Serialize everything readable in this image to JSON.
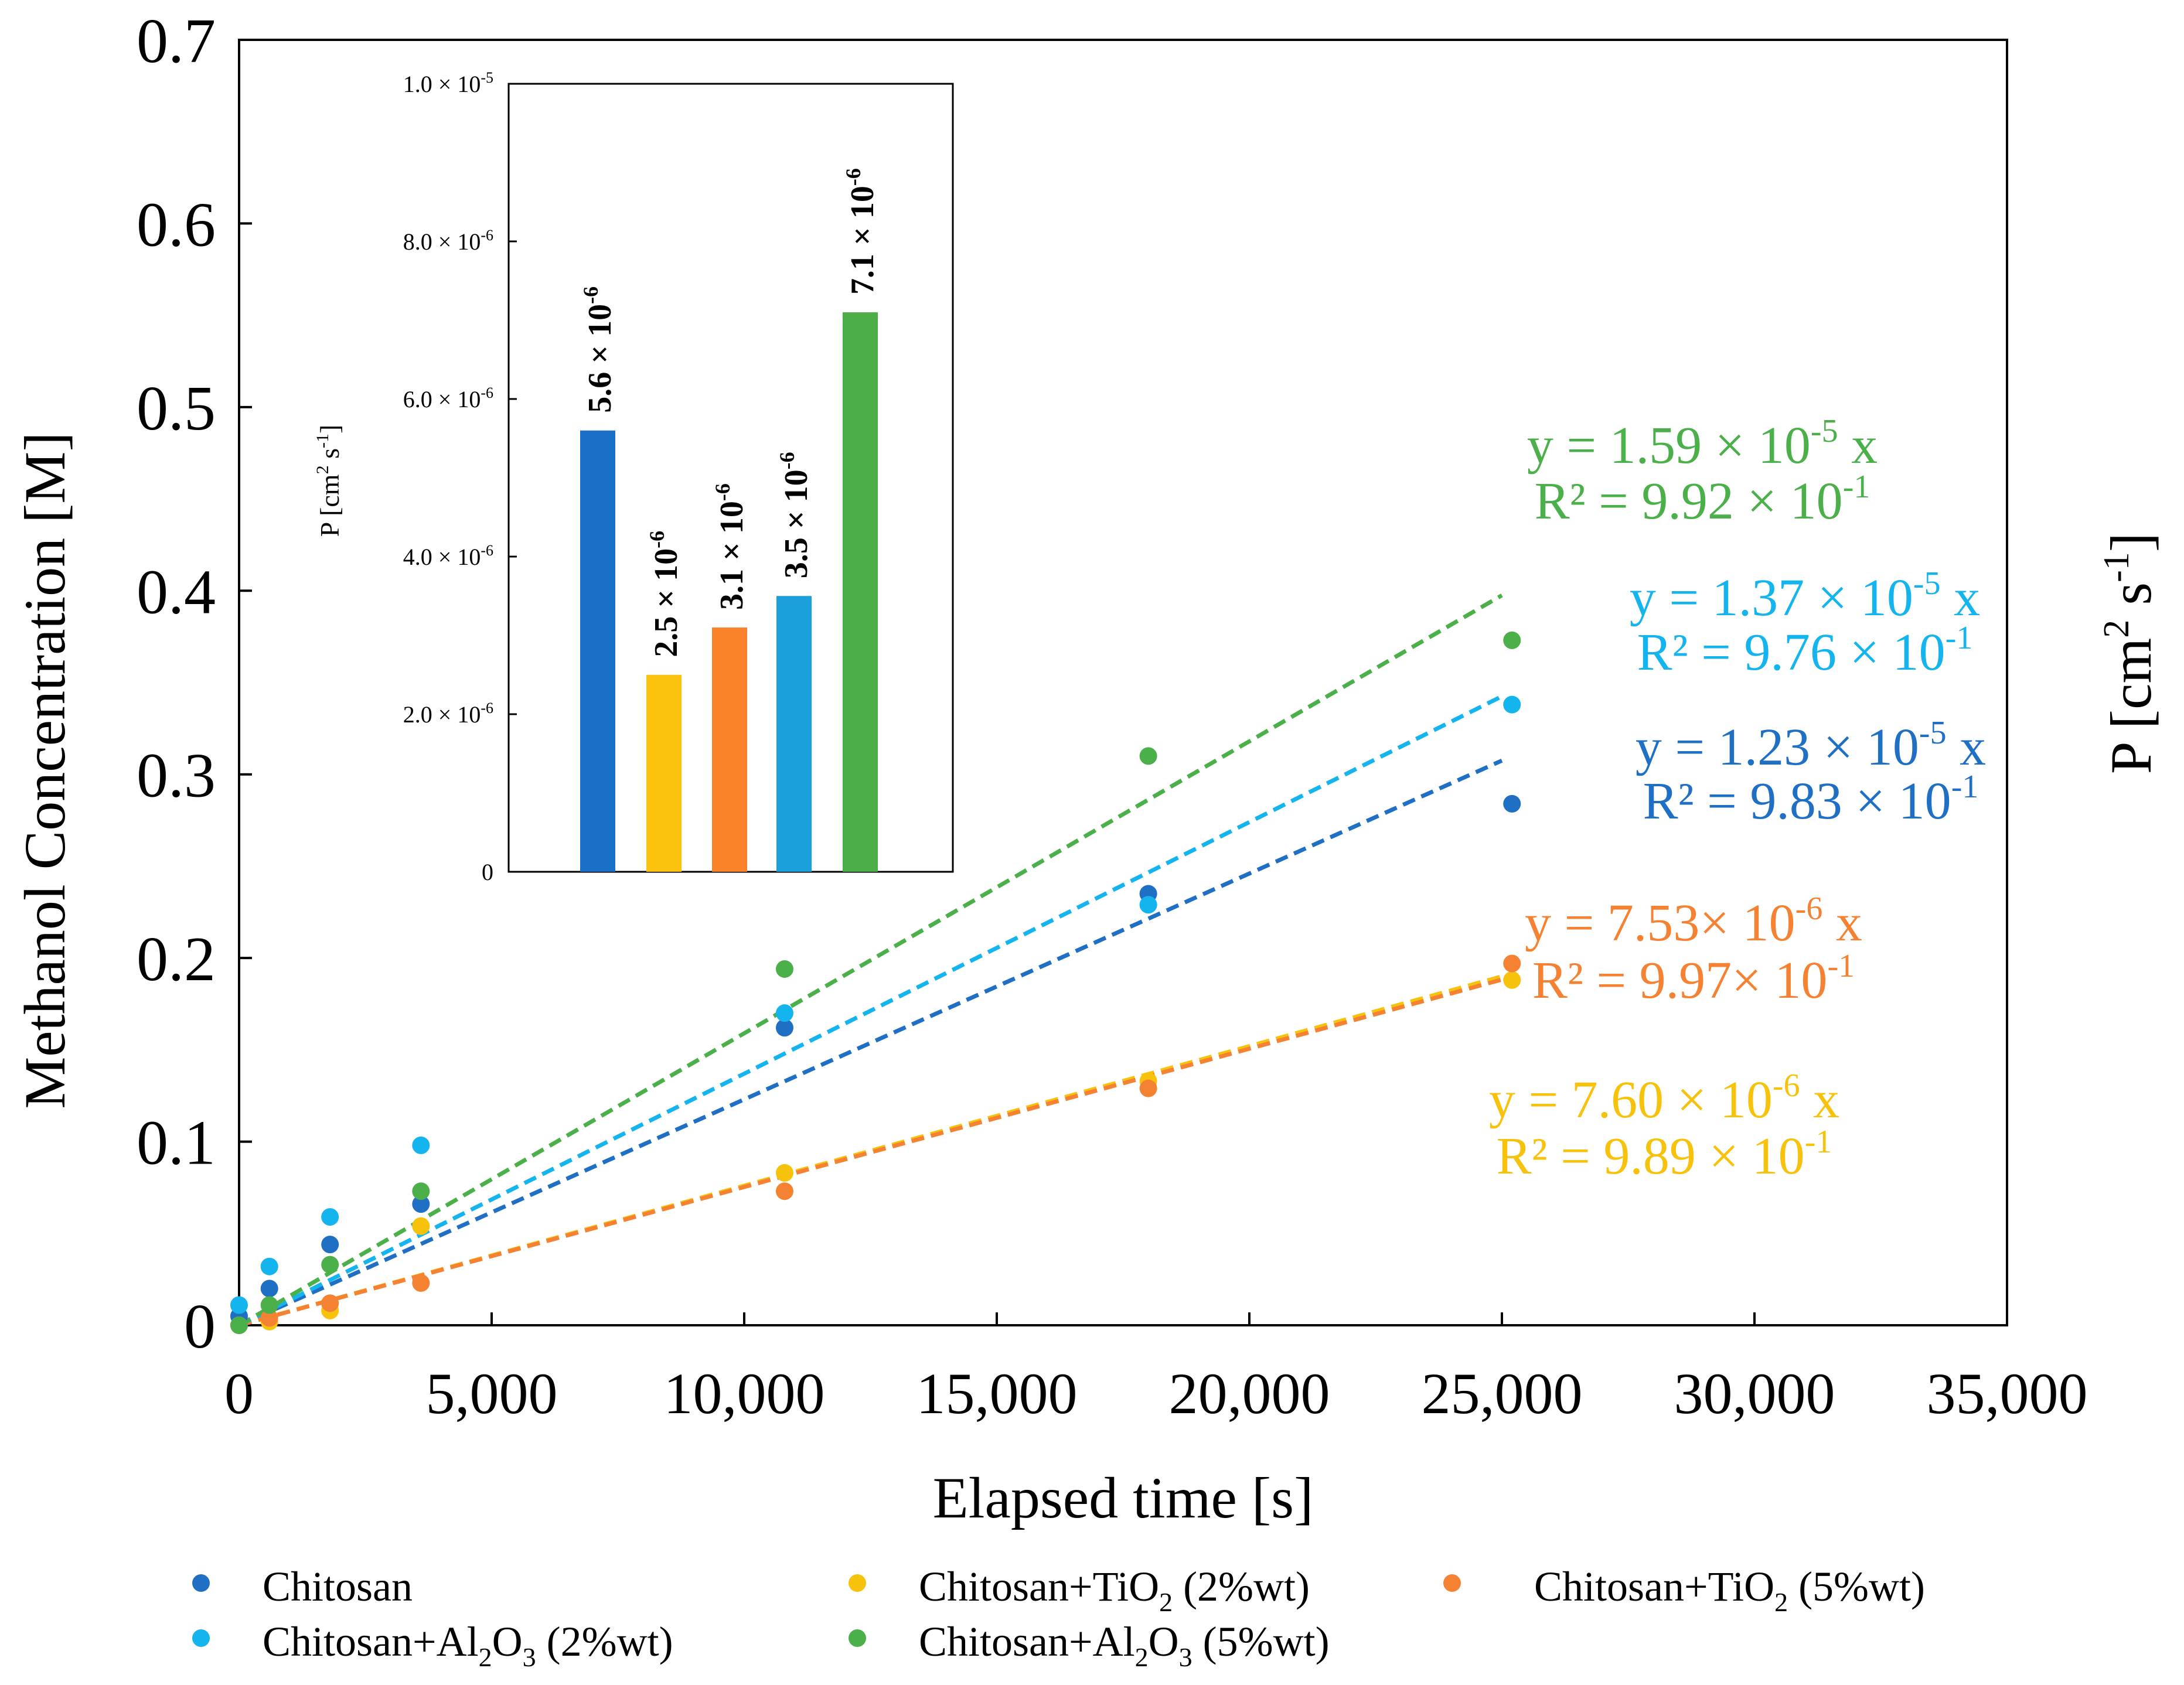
{
  "chart_data": {
    "type": "scatter",
    "title": "",
    "xlabel": "Elapsed time [s]",
    "ylabel": "Methanol Concentration [M]",
    "right_label_main": "P [cm",
    "right_label_sup1": "2",
    "right_label_mid": " s",
    "right_label_sup2": "-1",
    "right_label_end": "]",
    "xlim": [
      0,
      35000
    ],
    "ylim": [
      0,
      0.7
    ],
    "x_ticks": [
      0,
      5000,
      10000,
      15000,
      20000,
      25000,
      30000,
      35000
    ],
    "x_tick_labels": [
      "0",
      "5,000",
      "10,000",
      "15,000",
      "20,000",
      "25,000",
      "30,000",
      "35,000"
    ],
    "y_ticks": [
      0,
      0.1,
      0.2,
      0.3,
      0.4,
      0.5,
      0.6,
      0.7
    ],
    "y_tick_labels": [
      "0",
      "0.1",
      "0.2",
      "0.3",
      "0.4",
      "0.5",
      "0.6",
      "0.7"
    ],
    "x": [
      0,
      600,
      1800,
      3600,
      10800,
      18000,
      25200
    ],
    "fit_x_end": 25000,
    "series": [
      {
        "name": "Chitosan",
        "name_sub": "",
        "name_rest": "",
        "color": "#1f6fc5",
        "values": [
          0.005,
          0.02,
          0.044,
          0.066,
          0.162,
          0.235,
          0.284
        ],
        "slope": 1.23e-05,
        "eq_main": "y = 1.23 × 10",
        "eq_exp": "-5",
        "eq_tail": " x",
        "r2_main": "R² = 9.83 × 10",
        "r2_exp": "-1",
        "r2_tail": ""
      },
      {
        "name": "Chitosan+TiO",
        "name_sub": "2",
        "name_rest": "  (2%wt)",
        "color": "#f7c20b",
        "values": [
          0.0,
          0.002,
          0.008,
          0.054,
          0.083,
          0.133,
          0.188
        ],
        "slope": 7.6e-06,
        "eq_main": "y = 7.60 × 10",
        "eq_exp": "-6",
        "eq_tail": " x",
        "r2_main": "R² = 9.89 × 10",
        "r2_exp": "-1",
        "r2_tail": ""
      },
      {
        "name": "Chitosan+TiO",
        "name_sub": "2",
        "name_rest": "  (5%wt)",
        "color": "#f58232",
        "values": [
          0.0,
          0.004,
          0.012,
          0.023,
          0.073,
          0.129,
          0.197
        ],
        "slope": 7.53e-06,
        "eq_main": "y = 7.53× 10",
        "eq_exp": "-6",
        "eq_tail": " x",
        "r2_main": "R² = 9.97× 10",
        "r2_exp": "-1",
        "r2_tail": ""
      },
      {
        "name": "Chitosan+Al",
        "name_sub": "2",
        "name_rest": "O",
        "name_sub2": "3",
        "name_rest2": "  (2%wt)",
        "color": "#14b4ef",
        "values": [
          0.011,
          0.032,
          0.059,
          0.098,
          0.17,
          0.229,
          0.338
        ],
        "slope": 1.37e-05,
        "eq_main": "y = 1.37 × 10",
        "eq_exp": "-5",
        "eq_tail": " x",
        "r2_main": "R² = 9.76 × 10",
        "r2_exp": "-1",
        "r2_tail": ""
      },
      {
        "name": "Chitosan+Al",
        "name_sub": "2",
        "name_rest": "O",
        "name_sub2": "3",
        "name_rest2": "  (5%wt)",
        "color": "#4bb04a",
        "values": [
          0.0,
          0.011,
          0.033,
          0.073,
          0.194,
          0.31,
          0.373
        ],
        "slope": 1.59e-05,
        "eq_main": "y = 1.59 × 10",
        "eq_exp": "-5",
        "eq_tail": " x",
        "r2_main": "R² = 9.92 × 10",
        "r2_exp": "-1",
        "r2_tail": ""
      }
    ],
    "inset": {
      "type": "bar",
      "ylabel_main": "P [cm",
      "ylabel_sup1": "2",
      "ylabel_mid": " s",
      "ylabel_sup2": "-1",
      "ylabel_end": "]",
      "ylim": [
        0,
        1e-05
      ],
      "y_ticks": [
        0,
        2e-06,
        4e-06,
        6e-06,
        8e-06,
        1e-05
      ],
      "y_tick_main": [
        "0",
        "2.0 × 10",
        "4.0 × 10",
        "6.0 × 10",
        "8.0 × 10",
        "1.0 × 10"
      ],
      "y_tick_exp": [
        "",
        "-6",
        "-6",
        "-6",
        "-6",
        "-5"
      ],
      "values": [
        5.6e-06,
        2.5e-06,
        3.1e-06,
        3.5e-06,
        7.1e-06
      ],
      "colors": [
        "#1a6fc6",
        "#fbc30c",
        "#fa8128",
        "#1ba0dc",
        "#4cae47"
      ],
      "labels_main": [
        "5.6 × 10",
        "2.5 × 10",
        "3.1 × 10",
        "3.5 × 10",
        "7.1 × 10"
      ],
      "labels_exp": [
        "-6",
        "-6",
        "-6",
        "-6",
        "-6"
      ]
    }
  }
}
